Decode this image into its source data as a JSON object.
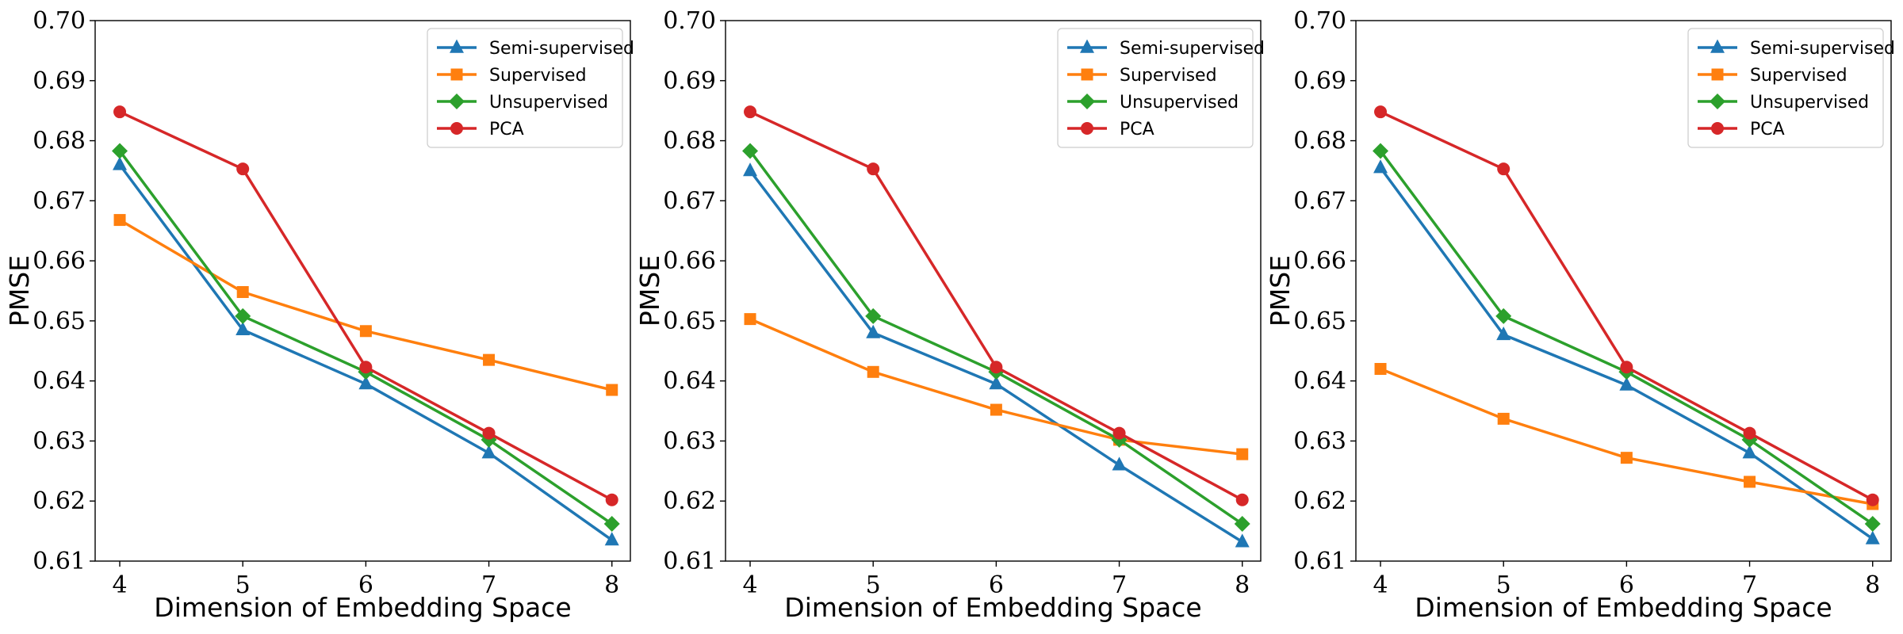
{
  "chart_data": [
    {
      "type": "line",
      "xlabel": "Dimension of Embedding Space",
      "ylabel": "PMSE",
      "x": [
        4,
        5,
        6,
        7,
        8
      ],
      "xlim": [
        3.8,
        8.15
      ],
      "ylim": [
        0.61,
        0.7
      ],
      "yticks": [
        "0.61",
        "0.62",
        "0.63",
        "0.64",
        "0.65",
        "0.66",
        "0.67",
        "0.68",
        "0.69",
        "0.70"
      ],
      "legend_position": "top-right",
      "grid": false,
      "series": [
        {
          "name": "Semi-supervised",
          "color": "#1f77b4",
          "marker": "triangle",
          "values": [
            0.676,
            0.6485,
            0.6395,
            0.628,
            0.6135
          ]
        },
        {
          "name": "Supervised",
          "color": "#ff7f0e",
          "marker": "square",
          "values": [
            0.6668,
            0.6548,
            0.6483,
            0.6435,
            0.6385
          ]
        },
        {
          "name": "Unsupervised",
          "color": "#2ca02c",
          "marker": "diamond",
          "values": [
            0.6783,
            0.6508,
            0.6415,
            0.6302,
            0.6162
          ]
        },
        {
          "name": "PCA",
          "color": "#d62728",
          "marker": "circle",
          "values": [
            0.6848,
            0.6753,
            0.6423,
            0.6313,
            0.6202
          ]
        }
      ]
    },
    {
      "type": "line",
      "xlabel": "Dimension of Embedding Space",
      "ylabel": "PMSE",
      "x": [
        4,
        5,
        6,
        7,
        8
      ],
      "xlim": [
        3.8,
        8.15
      ],
      "ylim": [
        0.61,
        0.7
      ],
      "yticks": [
        "0.61",
        "0.62",
        "0.63",
        "0.64",
        "0.65",
        "0.66",
        "0.67",
        "0.68",
        "0.69",
        "0.70"
      ],
      "legend_position": "top-right",
      "grid": false,
      "series": [
        {
          "name": "Semi-supervised",
          "color": "#1f77b4",
          "marker": "triangle",
          "values": [
            0.675,
            0.648,
            0.6395,
            0.626,
            0.6132
          ]
        },
        {
          "name": "Supervised",
          "color": "#ff7f0e",
          "marker": "square",
          "values": [
            0.6503,
            0.6415,
            0.6352,
            0.6302,
            0.6278
          ]
        },
        {
          "name": "Unsupervised",
          "color": "#2ca02c",
          "marker": "diamond",
          "values": [
            0.6783,
            0.6508,
            0.6415,
            0.6302,
            0.6162
          ]
        },
        {
          "name": "PCA",
          "color": "#d62728",
          "marker": "circle",
          "values": [
            0.6848,
            0.6753,
            0.6423,
            0.6313,
            0.6202
          ]
        }
      ]
    },
    {
      "type": "line",
      "xlabel": "Dimension of Embedding Space",
      "ylabel": "PMSE",
      "x": [
        4,
        5,
        6,
        7,
        8
      ],
      "xlim": [
        3.8,
        8.15
      ],
      "ylim": [
        0.61,
        0.7
      ],
      "yticks": [
        "0.61",
        "0.62",
        "0.63",
        "0.64",
        "0.65",
        "0.66",
        "0.67",
        "0.68",
        "0.69",
        "0.70"
      ],
      "legend_position": "top-right",
      "grid": false,
      "series": [
        {
          "name": "Semi-supervised",
          "color": "#1f77b4",
          "marker": "triangle",
          "values": [
            0.6755,
            0.6477,
            0.6393,
            0.628,
            0.6137
          ]
        },
        {
          "name": "Supervised",
          "color": "#ff7f0e",
          "marker": "square",
          "values": [
            0.642,
            0.6337,
            0.6272,
            0.6232,
            0.6195
          ]
        },
        {
          "name": "Unsupervised",
          "color": "#2ca02c",
          "marker": "diamond",
          "values": [
            0.6783,
            0.6508,
            0.6415,
            0.6302,
            0.6162
          ]
        },
        {
          "name": "PCA",
          "color": "#d62728",
          "marker": "circle",
          "values": [
            0.6848,
            0.6753,
            0.6423,
            0.6313,
            0.6202
          ]
        }
      ]
    }
  ]
}
